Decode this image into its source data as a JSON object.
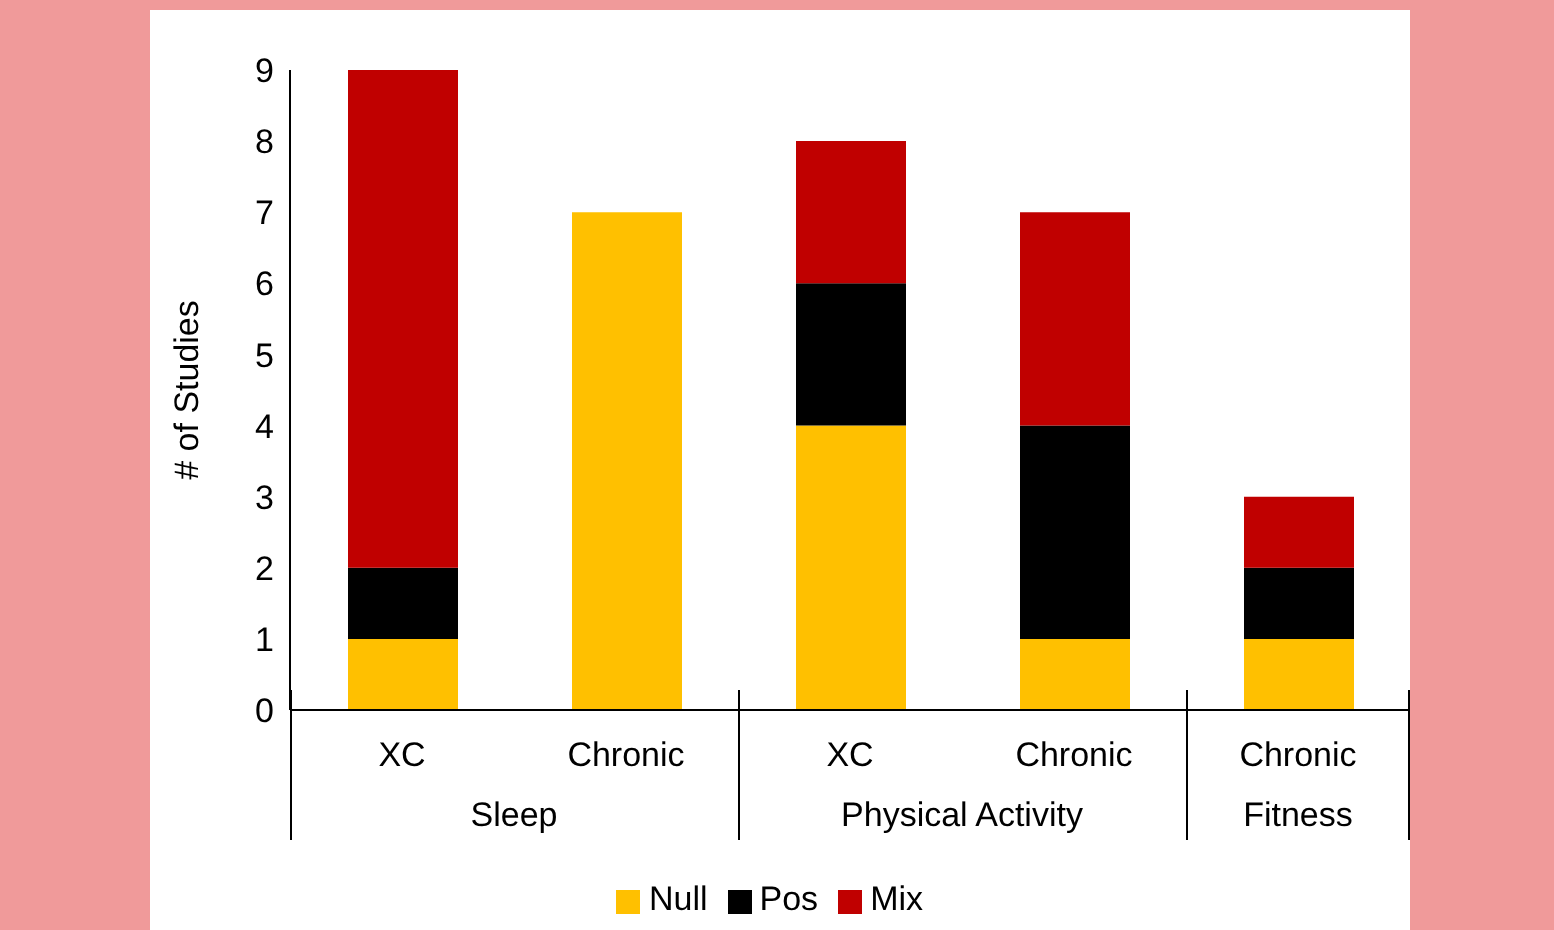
{
  "chart_data": {
    "type": "bar",
    "stacked": true,
    "ylabel": "# of Studies",
    "categories": [
      "XC",
      "Chronic",
      "XC",
      "Chronic",
      "Chronic"
    ],
    "series": [
      {
        "name": "Null",
        "color": "#ffc000",
        "values": [
          1,
          7,
          4,
          1,
          1
        ]
      },
      {
        "name": "Pos",
        "color": "#000000",
        "values": [
          1,
          0,
          2,
          3,
          1
        ]
      },
      {
        "name": "Mix",
        "color": "#c00000",
        "values": [
          7,
          0,
          2,
          3,
          1
        ]
      }
    ],
    "ylim": [
      0,
      9
    ],
    "yticks": [
      0,
      1,
      2,
      3,
      4,
      5,
      6,
      7,
      8,
      9
    ],
    "legend": "bottom",
    "annotations": [
      "Sleep",
      "Physical Activity",
      "Fitness"
    ]
  }
}
